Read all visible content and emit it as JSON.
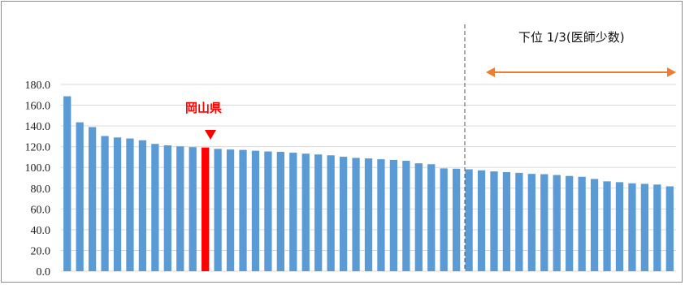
{
  "chart_data": {
    "type": "bar",
    "title": "",
    "xlabel": "",
    "ylabel": "",
    "ylim": [
      0,
      180
    ],
    "yticks": [
      "180.0",
      "160.0",
      "140.0",
      "120.0",
      "100.0",
      "80.0",
      "60.0",
      "40.0",
      "20.0",
      "0.0"
    ],
    "grid": true,
    "legend": "none",
    "values": [
      168.6,
      143.5,
      138.9,
      130.3,
      128.9,
      127.9,
      126.2,
      122.7,
      121.3,
      120.3,
      119.6,
      119.2,
      117.9,
      117.3,
      116.9,
      116.1,
      115.4,
      115.0,
      114.2,
      113.3,
      112.5,
      111.7,
      110.3,
      109.2,
      108.7,
      107.9,
      107.3,
      106.4,
      104.0,
      103.1,
      99.1,
      98.8,
      98.2,
      97.2,
      96.2,
      95.5,
      94.8,
      93.8,
      93.5,
      92.7,
      91.8,
      91.0,
      88.9,
      86.6,
      85.8,
      84.7,
      84.2,
      83.5,
      81.8
    ],
    "highlight_index": 11,
    "colors": {
      "bar": "#5b9bd5",
      "highlight": "#ff0000",
      "arrow": "#ed7d31",
      "grid": "#d9d9d9"
    },
    "annotations": {
      "highlight_label": "岡山県",
      "bottom_third_label": "下位 1/3(医師少数)"
    }
  }
}
